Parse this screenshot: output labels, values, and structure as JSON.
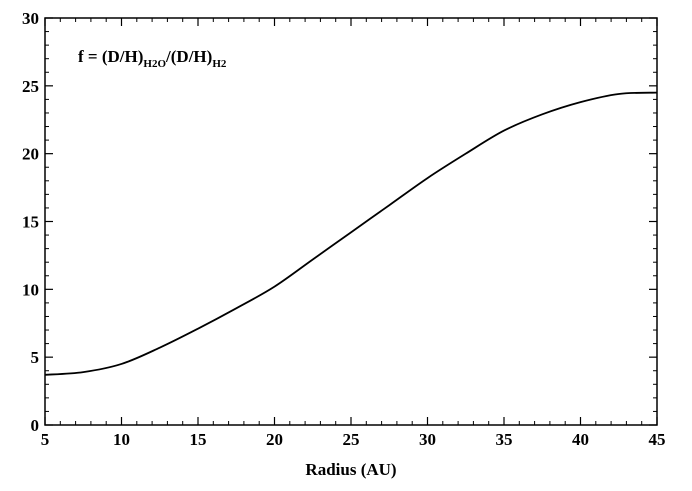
{
  "chart_data": {
    "type": "line",
    "title": "",
    "annotation": {
      "prefix": "f = (D/H)",
      "sub1": "H2O",
      "middle": "/(D/H)",
      "sub2": "H2"
    },
    "xlabel": "Radius (AU)",
    "ylabel": "",
    "xlim": [
      5,
      45
    ],
    "ylim": [
      0,
      30
    ],
    "xticks": [
      5,
      10,
      15,
      20,
      25,
      30,
      35,
      40,
      45
    ],
    "yticks": [
      0,
      5,
      10,
      15,
      20,
      25,
      30
    ],
    "grid": false,
    "legend": "none",
    "series": [
      {
        "color": "#000000",
        "x": [
          5,
          7.5,
          10,
          12.5,
          15,
          17.5,
          20,
          22.5,
          25,
          27.5,
          30,
          32.5,
          35,
          37.5,
          40,
          42.5,
          45
        ],
        "y": [
          3.7,
          3.9,
          4.5,
          5.7,
          7.1,
          8.6,
          10.2,
          12.2,
          14.2,
          16.2,
          18.2,
          20.0,
          21.7,
          22.9,
          23.8,
          24.4,
          24.5
        ]
      }
    ]
  }
}
